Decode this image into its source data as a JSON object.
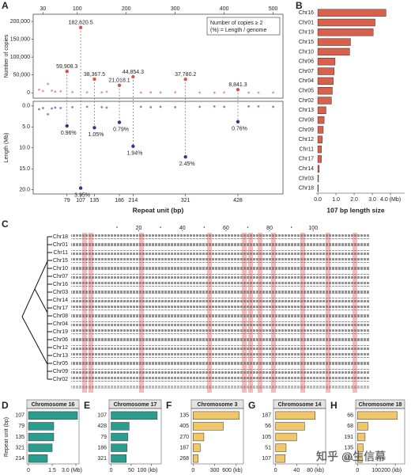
{
  "chart_data": [
    {
      "type": "scatter",
      "panel": "A",
      "xlabel": "Repeat unit (bp)",
      "xlim": [
        10,
        520
      ],
      "top_xticks": [
        30,
        100,
        200,
        300,
        400,
        500
      ],
      "xticks": [
        79,
        107,
        135,
        186,
        214,
        321,
        428
      ],
      "xtick_colors": [
        "#222",
        "#d62728",
        "#222",
        "#222",
        "#d62728",
        "#d62728",
        "#d62728"
      ],
      "copies": {
        "ylabel": "Number of copies",
        "ylim": [
          -15000,
          220000
        ],
        "yticks": [
          0,
          {
            "value": 50000,
            "label": "50,000"
          },
          {
            "value": 100000,
            "label": "100,000"
          },
          {
            "value": 150000,
            "label": "150,000"
          },
          {
            "value": 200000,
            "label": "200,000"
          }
        ],
        "legend": [
          "Number of copies ≥ 2",
          "(%) = Length / genome"
        ],
        "color": "#d9534f",
        "x": [
          79,
          107,
          135,
          186,
          214,
          321,
          428
        ],
        "values": [
          59908.3,
          182620.5,
          38367.5,
          21018.1,
          44854.3,
          37780.2,
          8841.3
        ],
        "value_labels": [
          "59,908.3",
          "182,620.5",
          "38,367.5",
          "21,018.1",
          "44,854.3",
          "37,780.2",
          "8,841.3"
        ],
        "label_colors": [
          "#222",
          "#d62728",
          "#d62728",
          "#222",
          "#d62728",
          "#d62728",
          "#d62728"
        ],
        "background_x": [
          22,
          30,
          40,
          48,
          55,
          66,
          90,
          120,
          150,
          160,
          230,
          250,
          270,
          300,
          350,
          380,
          400,
          450,
          470,
          500
        ],
        "background_values": [
          9000,
          5000,
          25000,
          6000,
          3000,
          4000,
          2000,
          1500,
          1000,
          3000,
          800,
          1200,
          900,
          1500,
          700,
          600,
          1000,
          500,
          600,
          800
        ]
      },
      "length": {
        "ylabel": "Length (Mb)",
        "ylim": [
          21,
          -1.1
        ],
        "yticks": [
          {
            "value": 0,
            "label": "0.0"
          },
          {
            "value": 5,
            "label": "5.0"
          },
          {
            "value": 10,
            "label": "10.0"
          },
          {
            "value": 15,
            "label": "15.0"
          },
          {
            "value": 20,
            "label": "20.0"
          }
        ],
        "color": "#2b3a8c",
        "x": [
          79,
          107,
          135,
          186,
          214,
          321,
          428
        ],
        "values": [
          4.76,
          19.6,
          5.2,
          3.92,
          9.62,
          12.15,
          3.77
        ],
        "percents": [
          0.96,
          3.95,
          1.05,
          0.79,
          1.94,
          2.45,
          0.76
        ],
        "percent_labels": [
          "0.96%",
          "3.95%",
          "1.05%",
          "0.79%",
          "1.94%",
          "2.45%",
          "0.76%"
        ],
        "label_colors": [
          "#222",
          "#d62728",
          "#222",
          "#222",
          "#d62728",
          "#d62728",
          "#d62728"
        ],
        "background_x": [
          22,
          30,
          40,
          48,
          55,
          66,
          90,
          120,
          150,
          160,
          230,
          250,
          270,
          300,
          350,
          380,
          400,
          450,
          470,
          500
        ],
        "background_values": [
          0.8,
          0.5,
          2.0,
          0.6,
          0.4,
          0.5,
          0.3,
          0.2,
          0.3,
          0.4,
          0.2,
          0.3,
          0.2,
          0.3,
          0.2,
          0.1,
          0.2,
          0.1,
          0.1,
          0.2
        ]
      }
    },
    {
      "type": "bar",
      "panel": "B",
      "title": "107 bp length size",
      "color": "#d9604a",
      "categories": [
        "Chr16",
        "Chr01",
        "Chr19",
        "Chr15",
        "Chr10",
        "Chr06",
        "Chr07",
        "Chr04",
        "Chr05",
        "Chr02",
        "Chr13",
        "Chr08",
        "Chr09",
        "Chr12",
        "Chr11",
        "Chr17",
        "Chr14",
        "Chr03",
        "Chr18"
      ],
      "values": [
        3.75,
        3.15,
        3.05,
        1.8,
        1.75,
        0.95,
        0.9,
        0.85,
        0.8,
        0.75,
        0.45,
        0.35,
        0.3,
        0.25,
        0.2,
        0.2,
        0.08,
        0.04,
        0.03
      ],
      "xlim": [
        -0.09,
        4.78
      ],
      "xticks": [
        {
          "value": 0,
          "label": "0.0"
        },
        {
          "value": 1,
          "label": "1.0"
        },
        {
          "value": 2,
          "label": "2.0"
        },
        {
          "value": 3,
          "label": "3.0"
        },
        {
          "value": 4,
          "label": "4.0 (Mb)"
        }
      ]
    },
    {
      "type": "bar",
      "panel": "D",
      "title": "Chromosome 16",
      "ylabel": "Repeat unit (bp)",
      "color": "#2a9d8f",
      "categories": [
        "107",
        "79",
        "135",
        "321",
        "214"
      ],
      "values": [
        3.1,
        1.6,
        1.6,
        1.5,
        1.2
      ],
      "xlim": [
        -0.1,
        3.2
      ],
      "xticks": [
        0,
        1.5,
        {
          "value": 3,
          "label": "3.0 (Mb)"
        }
      ]
    },
    {
      "type": "bar",
      "panel": "E",
      "title": "Chromosome 17",
      "color": "#2a9d8f",
      "categories": [
        "107",
        "428",
        "79",
        "186",
        "321"
      ],
      "values": [
        115,
        45,
        42,
        40,
        38
      ],
      "xlim": [
        -5,
        125
      ],
      "xticks": [
        0,
        50,
        {
          "value": 100,
          "label": "100 (kb)"
        }
      ]
    },
    {
      "type": "bar",
      "panel": "F",
      "title": "Chromosome 3",
      "color": "#f0c86a",
      "categories": [
        "135",
        "405",
        "270",
        "187",
        "268"
      ],
      "values": [
        640,
        420,
        150,
        100,
        70
      ],
      "xlim": [
        -25,
        700
      ],
      "xticks": [
        0,
        300,
        {
          "value": 600,
          "label": "600 (kb)"
        }
      ]
    },
    {
      "type": "bar",
      "panel": "G",
      "title": "Chromosome 14",
      "color": "#f0c86a",
      "categories": [
        "187",
        "56",
        "105",
        "51",
        "107"
      ],
      "values": [
        75,
        55,
        40,
        20,
        18
      ],
      "xlim": [
        -4,
        95
      ],
      "xticks": [
        0,
        40,
        {
          "value": 80,
          "label": "80 (kb)"
        }
      ]
    },
    {
      "type": "bar",
      "panel": "H",
      "title": "Chromosome 18",
      "color": "#f0c86a",
      "categories": [
        "66",
        "68",
        "191",
        "135",
        "321"
      ],
      "values": [
        210,
        55,
        40,
        30,
        25
      ],
      "xlim": [
        -10,
        250
      ],
      "xticks": [
        0,
        100,
        {
          "value": 200,
          "label": "200 (kb)"
        }
      ]
    }
  ],
  "alignment": {
    "panel": "C",
    "ruler_lim": [
      -11,
      126
    ],
    "ruler_ticks": [
      20,
      40,
      60,
      80,
      100
    ],
    "rows": [
      "Chr18",
      "Chr01",
      "Chr11",
      "Chr15",
      "Chr10",
      "Chr07",
      "Chr16",
      "Chr03",
      "Chr14",
      "Chr17",
      "Chr08",
      "Chr04",
      "Chr19",
      "Chr06",
      "Chr12",
      "Chr13",
      "Chr05",
      "Chr09",
      "Chr02"
    ]
  },
  "watermark": "知乎 @生信幕"
}
